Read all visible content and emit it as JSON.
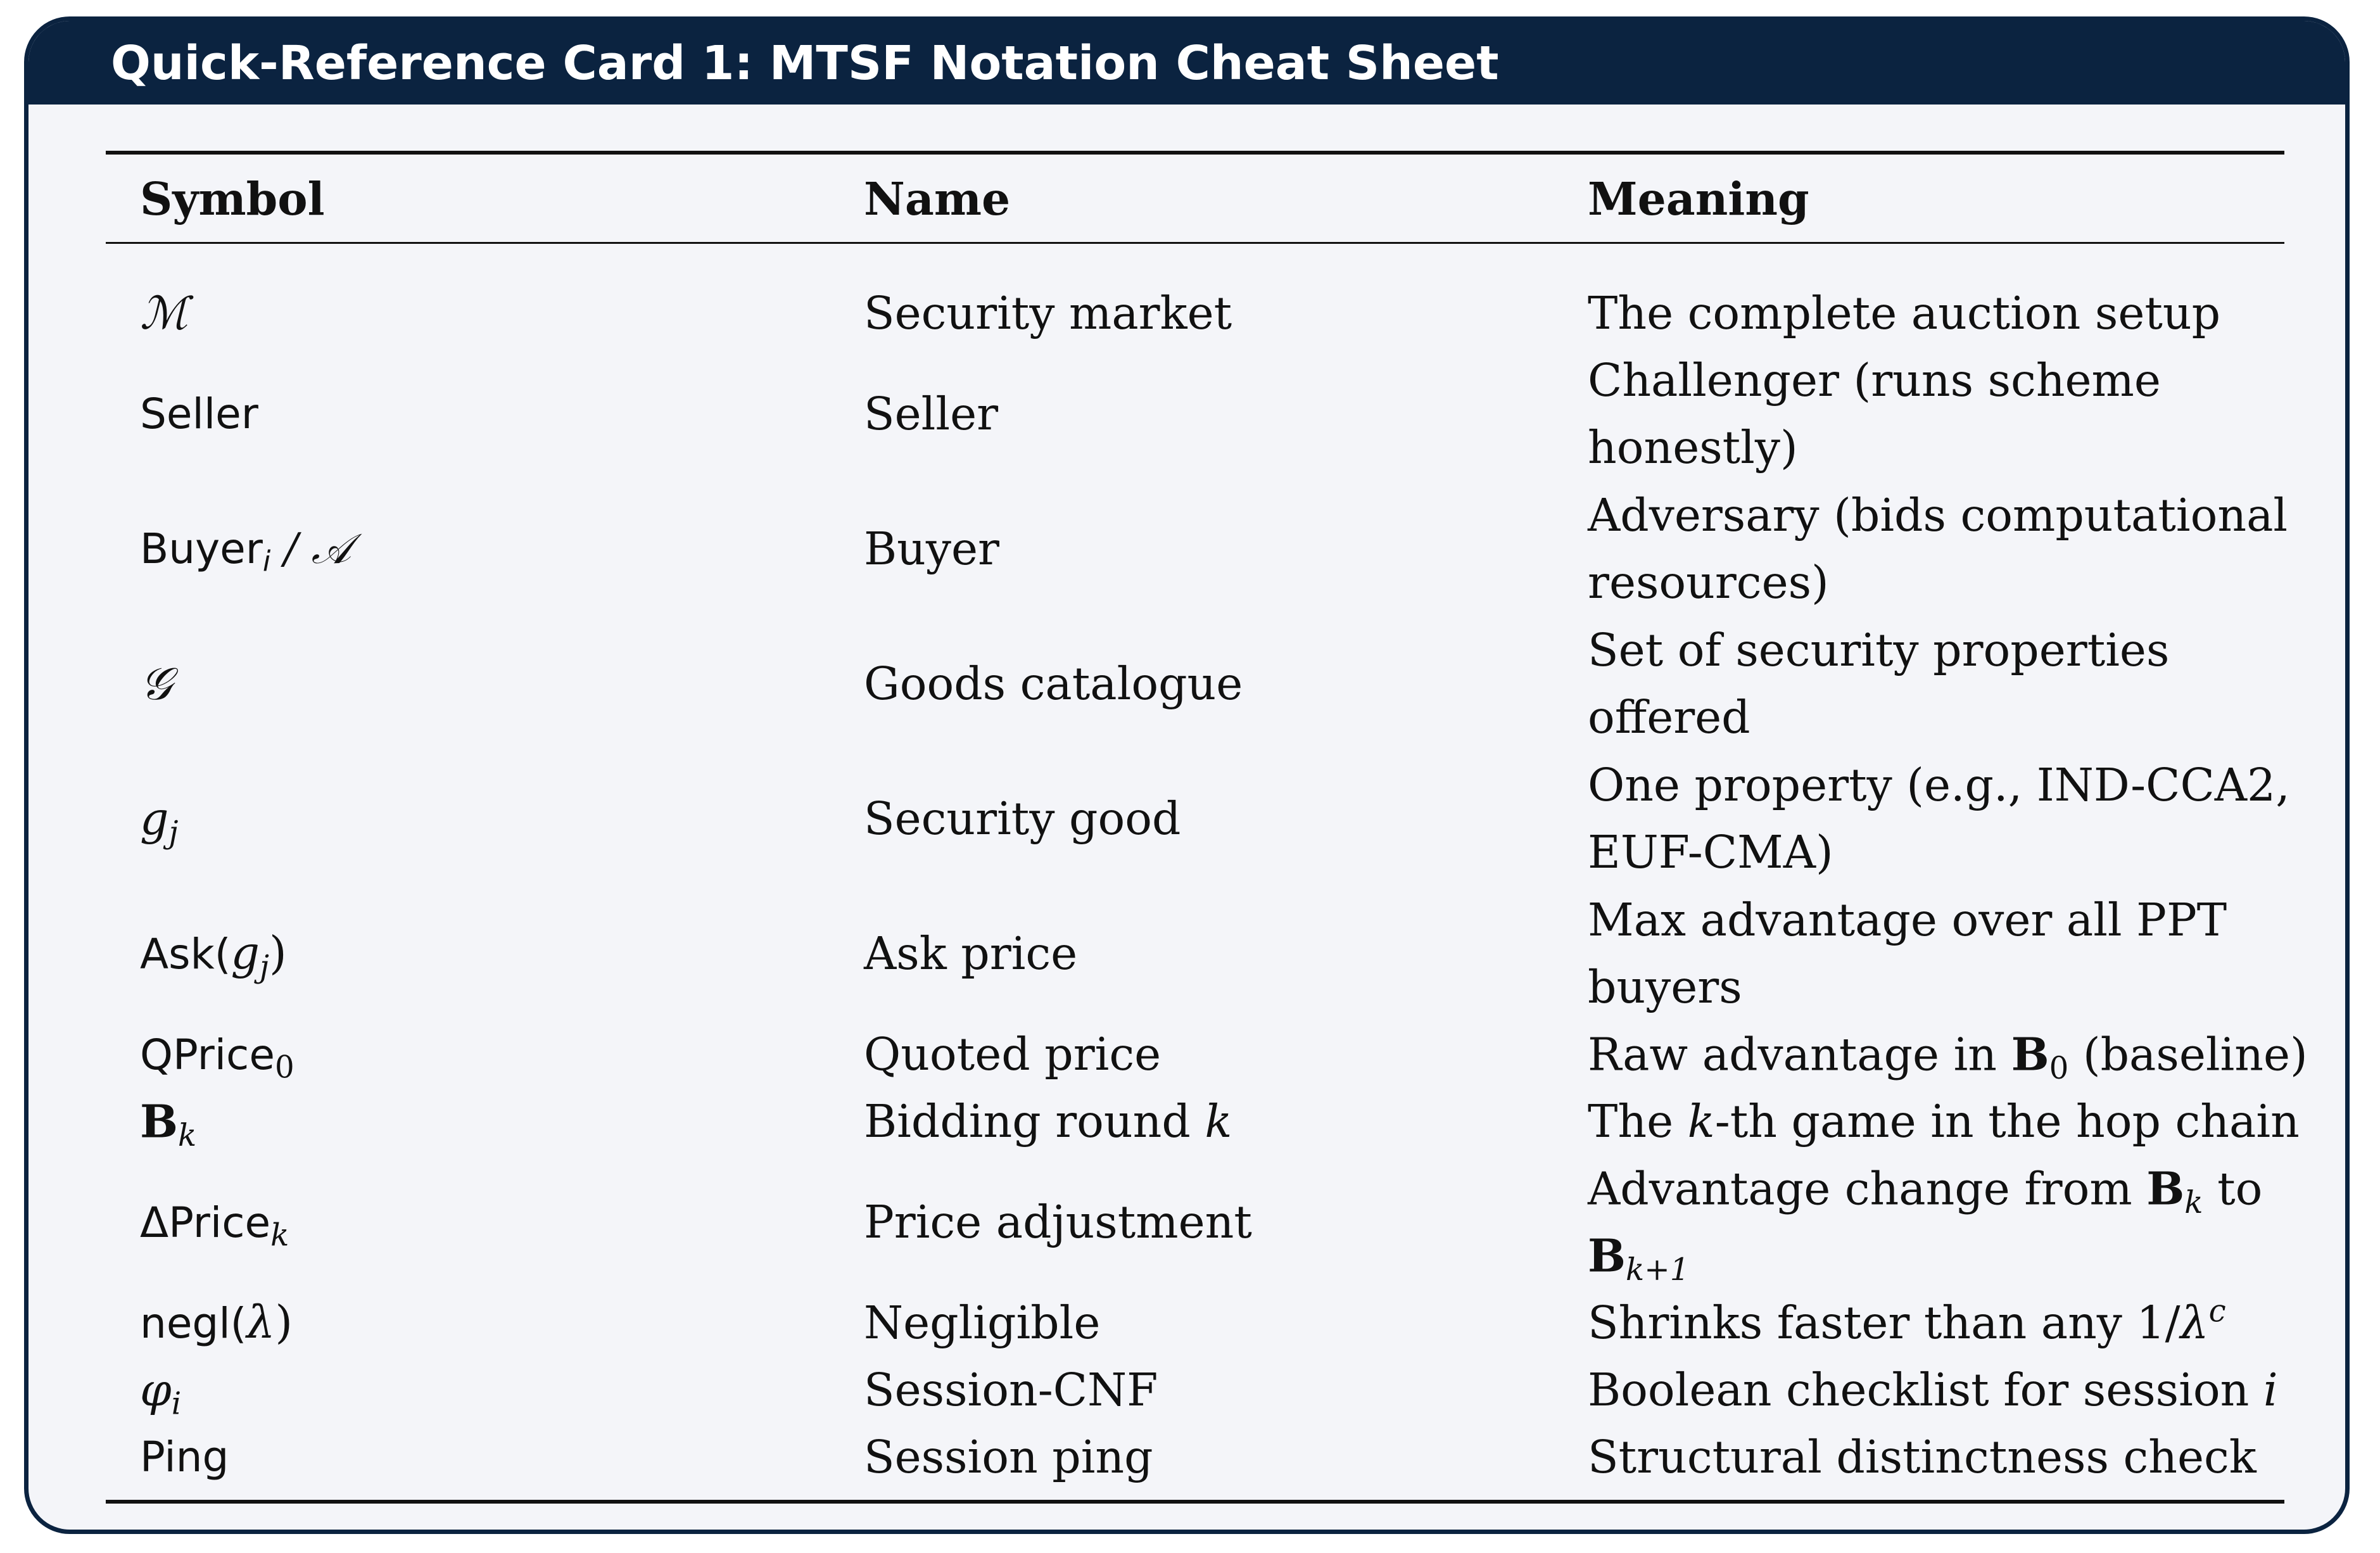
{
  "card": {
    "title": "Quick-Reference Card 1: MTSF Notation Cheat Sheet"
  },
  "table": {
    "headers": {
      "symbol": "Symbol",
      "name": "Name",
      "meaning": "Meaning"
    },
    "rows": [
      {
        "symbol": "ℳ",
        "name": "Security market",
        "meaning": [
          "The complete auction setup"
        ]
      },
      {
        "symbol": "Seller",
        "name": "Seller",
        "meaning": [
          "Challenger (runs scheme",
          "honestly)"
        ]
      },
      {
        "symbol": "Buyer",
        "symbol_sub": "i",
        "symbol_rest": " / 𝒜",
        "name": "Buyer",
        "meaning": [
          "Adversary (bids computational",
          "resources)"
        ]
      },
      {
        "symbol": "𝒢",
        "name": "Goods catalogue",
        "meaning": [
          "Set of security properties",
          "offered"
        ]
      },
      {
        "symbol": "g",
        "symbol_sub": "j",
        "name": "Security good",
        "meaning": [
          "One property (e.g., IND-CCA2,",
          "EUF-CMA)"
        ]
      },
      {
        "symbol": "Ask(",
        "symbol_mid": "g",
        "symbol_sub": "j",
        "symbol_rest": ")",
        "name": "Ask price",
        "meaning": [
          "Max advantage over all PPT",
          "buyers"
        ]
      },
      {
        "symbol": "QPrice",
        "symbol_sub": "0",
        "name": "Quoted price",
        "meaning_pre": "Raw advantage in ",
        "meaning_bold": "B",
        "meaning_sub": "0",
        "meaning_post": " (baseline)"
      },
      {
        "symbol": "B",
        "symbol_sub": "k",
        "name_pre": "Bidding round ",
        "name_var": "k",
        "meaning_pre": "The ",
        "meaning_var": "k",
        "meaning_post": "-th game in the hop chain"
      },
      {
        "symbol": "ΔPrice",
        "symbol_sub": "k",
        "name": "Price adjustment",
        "meaning_pre": "Advantage change from ",
        "meaning_bold": "B",
        "meaning_sub": "k",
        "meaning_post": " to",
        "meaning_line2_bold": "B",
        "meaning_line2_sub": "k+1"
      },
      {
        "symbol": "negl(",
        "symbol_mid": "λ",
        "symbol_rest": ")",
        "name": "Negligible",
        "meaning_pre": "Shrinks faster than any 1/",
        "meaning_var": "λ",
        "meaning_sup": "c"
      },
      {
        "symbol": "φ",
        "symbol_sub": "i",
        "name": "Session-CNF",
        "meaning_pre": "Boolean checklist for session ",
        "meaning_var": "i"
      },
      {
        "symbol": "Ping",
        "name": "Session ping",
        "meaning": [
          "Structural distinctness check"
        ]
      }
    ]
  }
}
